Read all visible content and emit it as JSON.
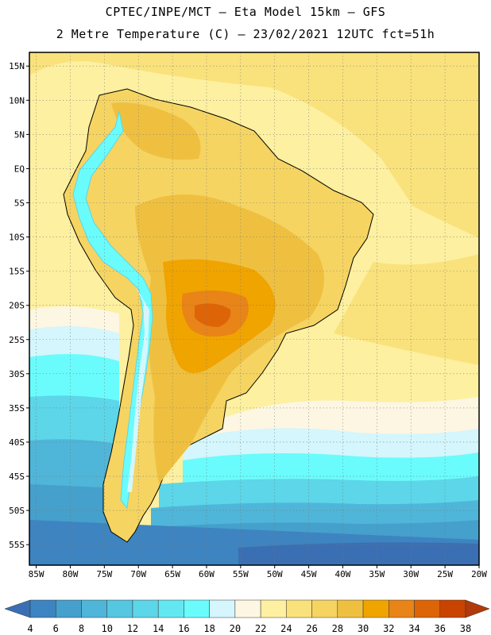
{
  "title_line1": "CPTEC/INPE/MCT –  Eta Model 15km – GFS",
  "title_line2": "2 Metre Temperature (C) – 23/02/2021 12UTC fct=51h",
  "chart_data": {
    "type": "heatmap",
    "title": "2 Metre Temperature (C)",
    "variable": "2 Metre Temperature",
    "units": "C",
    "model": "Eta Model 15km – GFS",
    "source": "CPTEC/INPE/MCT",
    "init": "23/02/2021 12UTC",
    "forecast": "fct=51h",
    "xlim": [
      -86,
      -20
    ],
    "ylim": [
      -58,
      17
    ],
    "lat_ticks": [
      "15N",
      "10N",
      "5N",
      "EQ",
      "5S",
      "10S",
      "15S",
      "20S",
      "25S",
      "30S",
      "35S",
      "40S",
      "45S",
      "50S",
      "55S"
    ],
    "lat_values": [
      15,
      10,
      5,
      0,
      -5,
      -10,
      -15,
      -20,
      -25,
      -30,
      -35,
      -40,
      -45,
      -50,
      -55
    ],
    "lon_ticks": [
      "85W",
      "80W",
      "75W",
      "70W",
      "65W",
      "60W",
      "55W",
      "50W",
      "45W",
      "40W",
      "35W",
      "30W",
      "25W",
      "20W"
    ],
    "lon_values": [
      -85,
      -80,
      -75,
      -70,
      -65,
      -60,
      -55,
      -50,
      -45,
      -40,
      -35,
      -30,
      -25,
      -20
    ],
    "colorbar_levels": [
      "4",
      "6",
      "8",
      "10",
      "12",
      "14",
      "16",
      "18",
      "20",
      "22",
      "24",
      "26",
      "28",
      "30",
      "32",
      "34",
      "36",
      "38"
    ],
    "colorbar_colors": [
      "#3a6fb3",
      "#3d84c1",
      "#45a0cc",
      "#4fb6d9",
      "#55c7e0",
      "#5cd6e8",
      "#63e8f2",
      "#6afcfc",
      "#d4f6fc",
      "#fdf6e2",
      "#fdf0a0",
      "#f9e27c",
      "#f5d462",
      "#efc040",
      "#f0a400",
      "#e88418",
      "#de6408",
      "#c84400",
      "#b03a0a"
    ]
  }
}
